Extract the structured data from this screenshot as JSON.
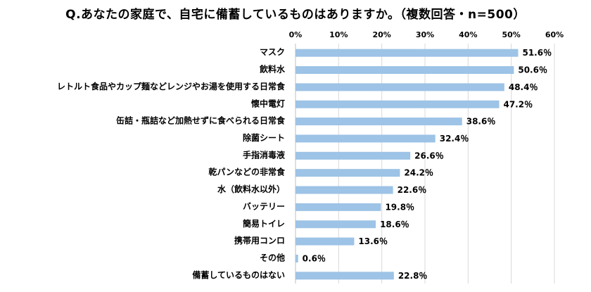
{
  "chart_data": {
    "type": "bar",
    "orientation": "horizontal",
    "title": "Q.あなたの家庭で、自宅に備蓄しているものはありますか。（複数回答・n=500）",
    "categories": [
      "マスク",
      "飲料水",
      "レトルト食品やカップ麺などレンジやお湯を使用する日常食",
      "懐中電灯",
      "缶詰・瓶詰など加熱せずに食べられる日常食",
      "除菌シート",
      "手指消毒液",
      "乾パンなどの非常食",
      "水（飲料水以外）",
      "バッテリー",
      "簡易トイレ",
      "携帯用コンロ",
      "その他",
      "備蓄しているものはない"
    ],
    "values": [
      51.6,
      50.6,
      48.4,
      47.2,
      38.6,
      32.4,
      26.6,
      24.2,
      22.6,
      19.8,
      18.6,
      13.6,
      0.6,
      22.8
    ],
    "value_labels": [
      "51.6％",
      "50.6％",
      "48.4％",
      "47.2％",
      "38.6％",
      "32.4％",
      "26.6％",
      "24.2％",
      "22.6％",
      "19.8％",
      "18.6％",
      "13.6％",
      "0.6％",
      "22.8％"
    ],
    "xlim": [
      0,
      60
    ],
    "xticks": [
      "0%",
      "10%",
      "20%",
      "30%",
      "40%",
      "50%",
      "60%"
    ],
    "xtick_values": [
      0,
      10,
      20,
      30,
      40,
      50,
      60
    ],
    "xaxis_position": "top",
    "grid": true,
    "bar_color": "#9dc3e6",
    "grid_color": "#d9d9d9"
  }
}
